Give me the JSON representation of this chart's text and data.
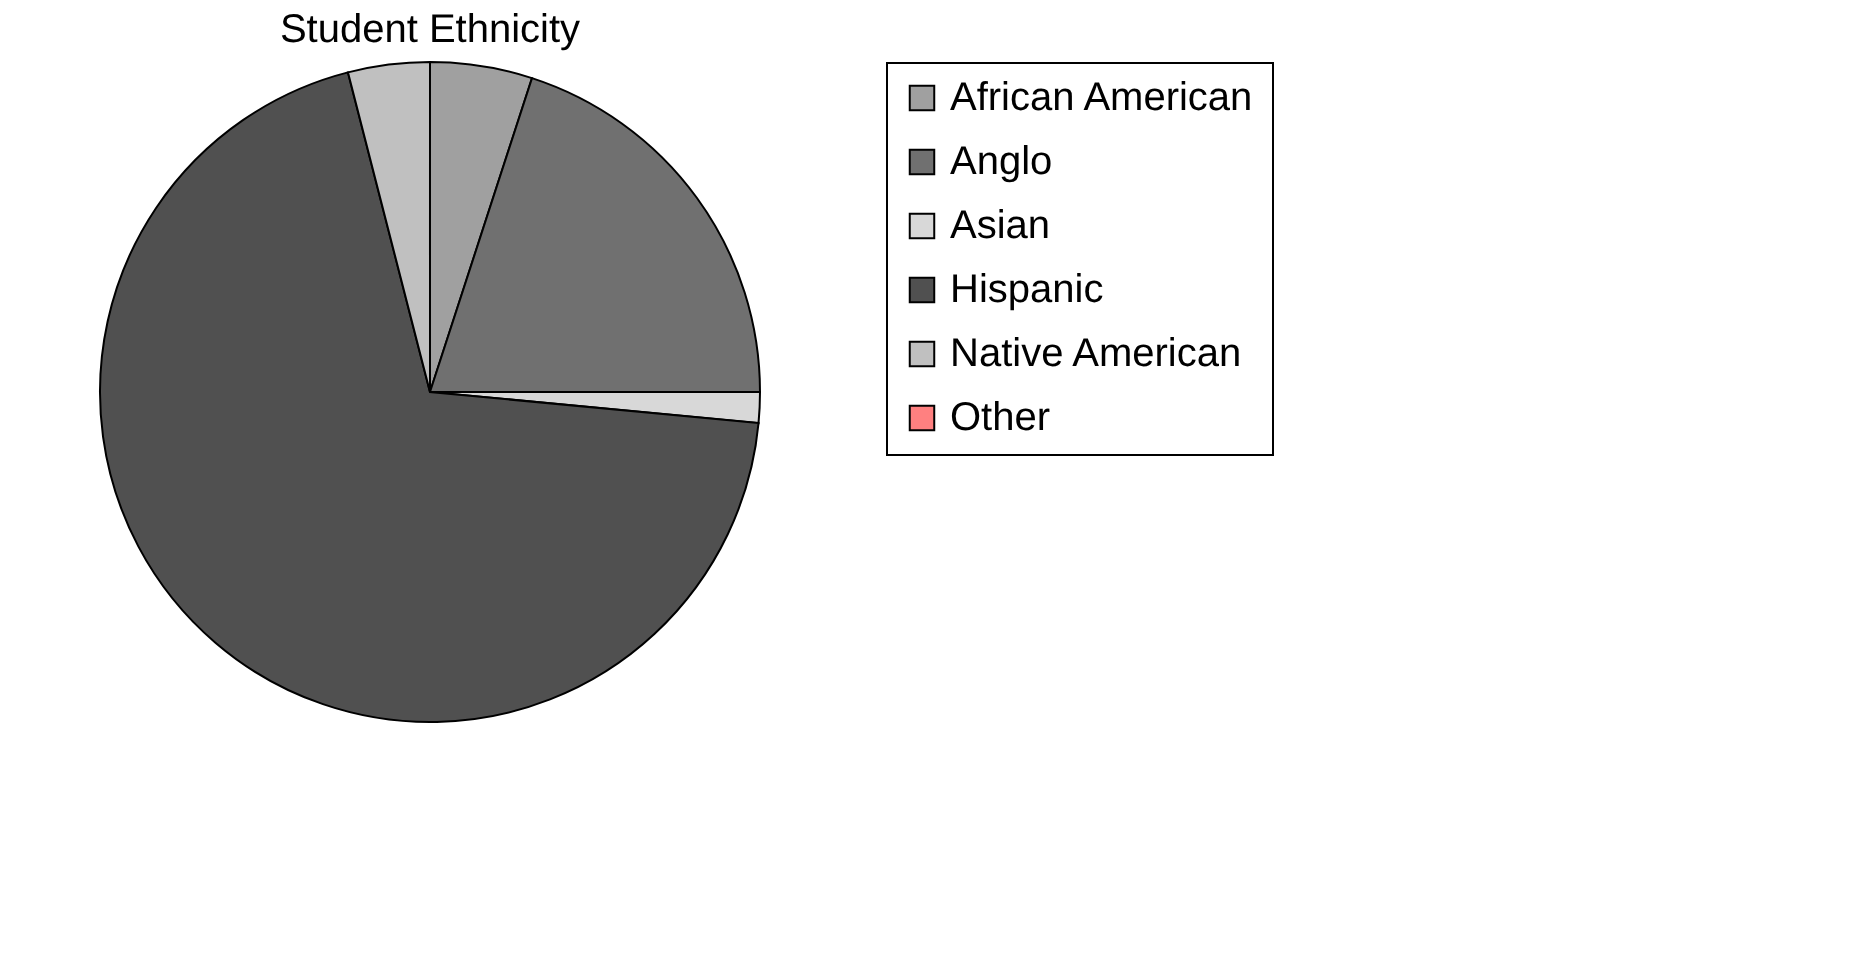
{
  "chart_data": {
    "type": "pie",
    "title": "Student Ethnicity",
    "categories": [
      "African American",
      "Anglo",
      "Asian",
      "Hispanic",
      "Native American",
      "Other"
    ],
    "values": [
      5,
      20,
      1.5,
      69.5,
      4,
      0
    ],
    "colors": [
      "#a0a0a0",
      "#707070",
      "#d8d8d8",
      "#505050",
      "#c0c0c0",
      "#ff8080"
    ],
    "legend": "right"
  }
}
